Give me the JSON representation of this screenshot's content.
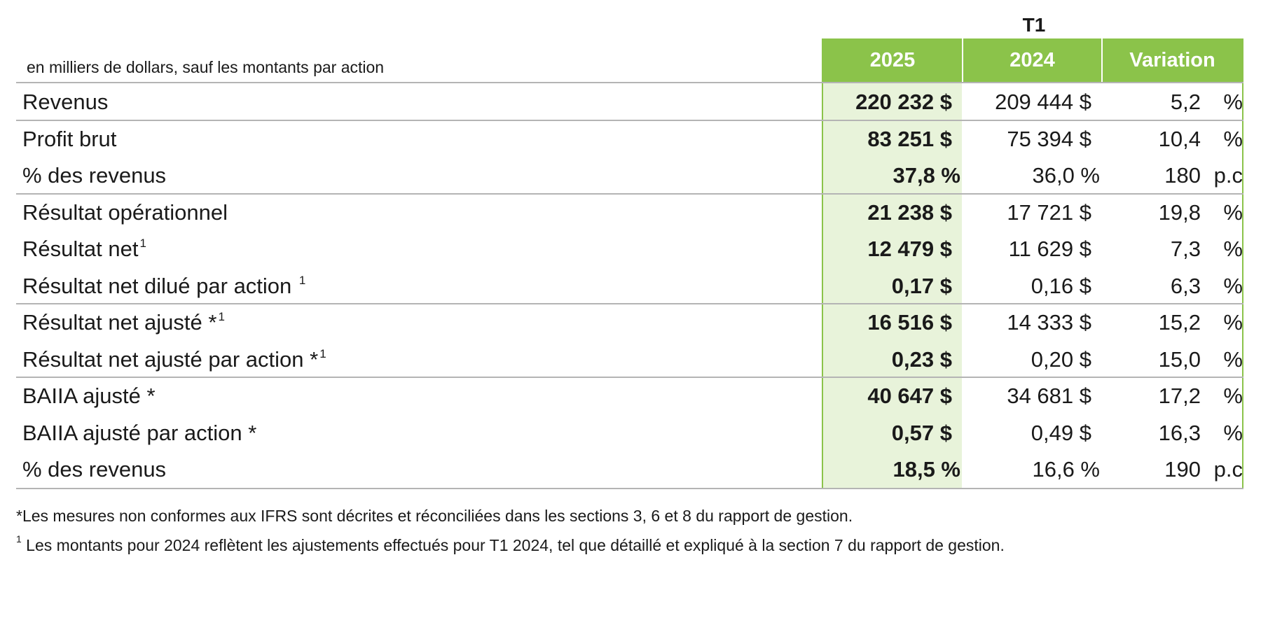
{
  "table": {
    "period": "T1",
    "units_note": "en milliers de dollars, sauf les montants par action",
    "columns": [
      "2025",
      "2024",
      "Variation"
    ],
    "rows": [
      {
        "label": "Revenus",
        "sup": "",
        "v2025": "220 232 $",
        "v2024": "209 444 $",
        "var": "5,2",
        "var_unit": "%"
      },
      {
        "label": "Profit brut",
        "sup": "",
        "v2025": "83 251 $",
        "v2024": "75 394 $",
        "var": "10,4",
        "var_unit": "%"
      },
      {
        "label": "% des revenus",
        "sup": "",
        "v2025": "37,8 %",
        "v2024": "36,0 %",
        "var": "180",
        "var_unit": "p.c"
      },
      {
        "label": "Résultat opérationnel",
        "sup": "",
        "v2025": "21 238 $",
        "v2024": "17 721 $",
        "var": "19,8",
        "var_unit": "%"
      },
      {
        "label": "Résultat net",
        "sup": "1",
        "v2025": "12 479 $",
        "v2024": "11 629 $",
        "var": "7,3",
        "var_unit": "%"
      },
      {
        "label": "Résultat net dilué par action ",
        "sup": "1",
        "v2025": "0,17 $",
        "v2024": "0,16 $",
        "var": "6,3",
        "var_unit": "%"
      },
      {
        "label": "Résultat net ajusté *",
        "sup": "1",
        "v2025": "16 516 $",
        "v2024": "14 333 $",
        "var": "15,2",
        "var_unit": "%"
      },
      {
        "label": "Résultat net ajusté par action *",
        "sup": "1",
        "v2025": "0,23 $",
        "v2024": "0,20 $",
        "var": "15,0",
        "var_unit": "%"
      },
      {
        "label": "BAIIA ajusté *",
        "sup": "",
        "v2025": "40 647 $",
        "v2024": "34 681 $",
        "var": "17,2",
        "var_unit": "%"
      },
      {
        "label": "BAIIA ajusté par action *",
        "sup": "",
        "v2025": "0,57 $",
        "v2024": "0,49 $",
        "var": "16,3",
        "var_unit": "%"
      },
      {
        "label": "% des revenus",
        "sup": "",
        "v2025": "18,5 %",
        "v2024": "16,6 %",
        "var": "190",
        "var_unit": "p.c"
      }
    ]
  },
  "footnotes": {
    "star": "*Les mesures non conformes aux IFRS sont décrites et réconciliées dans les sections 3, 6 et 8 du rapport de gestion.",
    "one_marker": "1",
    "one": " Les montants pour 2024 reflètent les ajustements effectués pour T1 2024, tel que détaillé et expliqué à la section 7 du rapport de gestion."
  },
  "colors": {
    "header_green": "#8bc34a",
    "column_tint": "#e8f3da",
    "rule_gray": "#b4b4b4"
  }
}
